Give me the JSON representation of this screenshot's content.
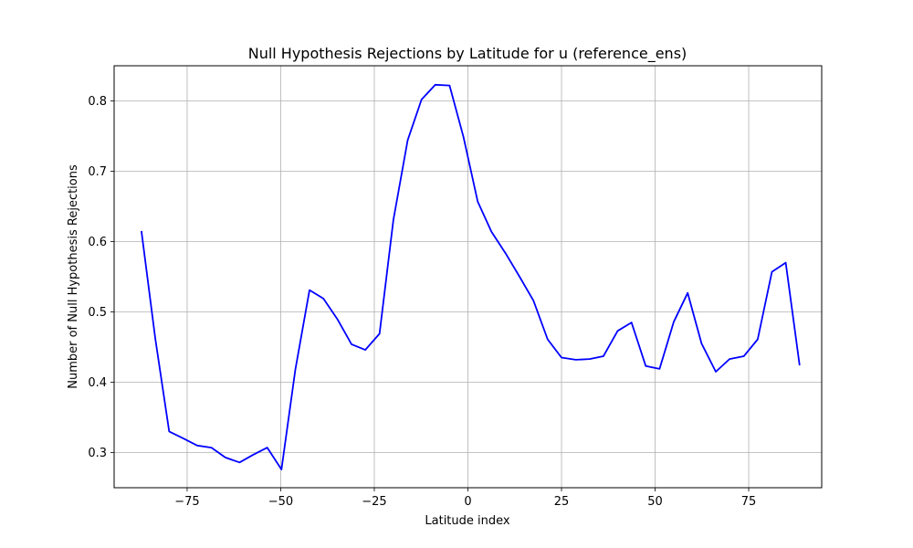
{
  "chart_data": {
    "type": "line",
    "title": "Null Hypothesis Rejections by Latitude for u (reference_ens)",
    "xlabel": "Latitude index",
    "ylabel": "Number of Null Hypothesis Rejections",
    "xlim": [
      -94.5,
      94.5
    ],
    "ylim": [
      0.25,
      0.85
    ],
    "xticks": [
      -75,
      -50,
      -25,
      0,
      25,
      50,
      75
    ],
    "xtick_labels": [
      "−75",
      "−50",
      "−25",
      "0",
      "25",
      "50",
      "75"
    ],
    "yticks": [
      0.3,
      0.4,
      0.5,
      0.6,
      0.7,
      0.8
    ],
    "ytick_labels": [
      "0.3",
      "0.4",
      "0.5",
      "0.6",
      "0.7",
      "0.8"
    ],
    "grid": true,
    "series": [
      {
        "color": "#0000ff",
        "x": [
          -87.2,
          -83.5,
          -79.8,
          -76.0,
          -72.3,
          -68.5,
          -64.8,
          -61.0,
          -57.3,
          -53.6,
          -49.8,
          -46.1,
          -42.3,
          -38.6,
          -34.9,
          -31.1,
          -27.4,
          -23.6,
          -19.9,
          -16.1,
          -12.4,
          -8.7,
          -4.9,
          -1.2,
          2.6,
          6.3,
          10.1,
          13.8,
          17.5,
          21.3,
          25.0,
          28.8,
          32.5,
          36.2,
          40.0,
          43.7,
          47.5,
          51.2,
          55.0,
          58.7,
          62.4,
          66.2,
          69.9,
          73.7,
          77.4,
          81.2,
          84.9,
          88.6
        ],
        "y": [
          0.615,
          0.462,
          0.33,
          0.32,
          0.31,
          0.307,
          0.293,
          0.286,
          0.297,
          0.307,
          0.276,
          0.418,
          0.531,
          0.519,
          0.49,
          0.454,
          0.446,
          0.469,
          0.631,
          0.744,
          0.802,
          0.823,
          0.822,
          0.749,
          0.657,
          0.614,
          0.583,
          0.55,
          0.516,
          0.461,
          0.435,
          0.432,
          0.433,
          0.437,
          0.473,
          0.485,
          0.423,
          0.419,
          0.486,
          0.527,
          0.455,
          0.415,
          0.433,
          0.437,
          0.461,
          0.557,
          0.57,
          0.424
        ]
      }
    ]
  }
}
